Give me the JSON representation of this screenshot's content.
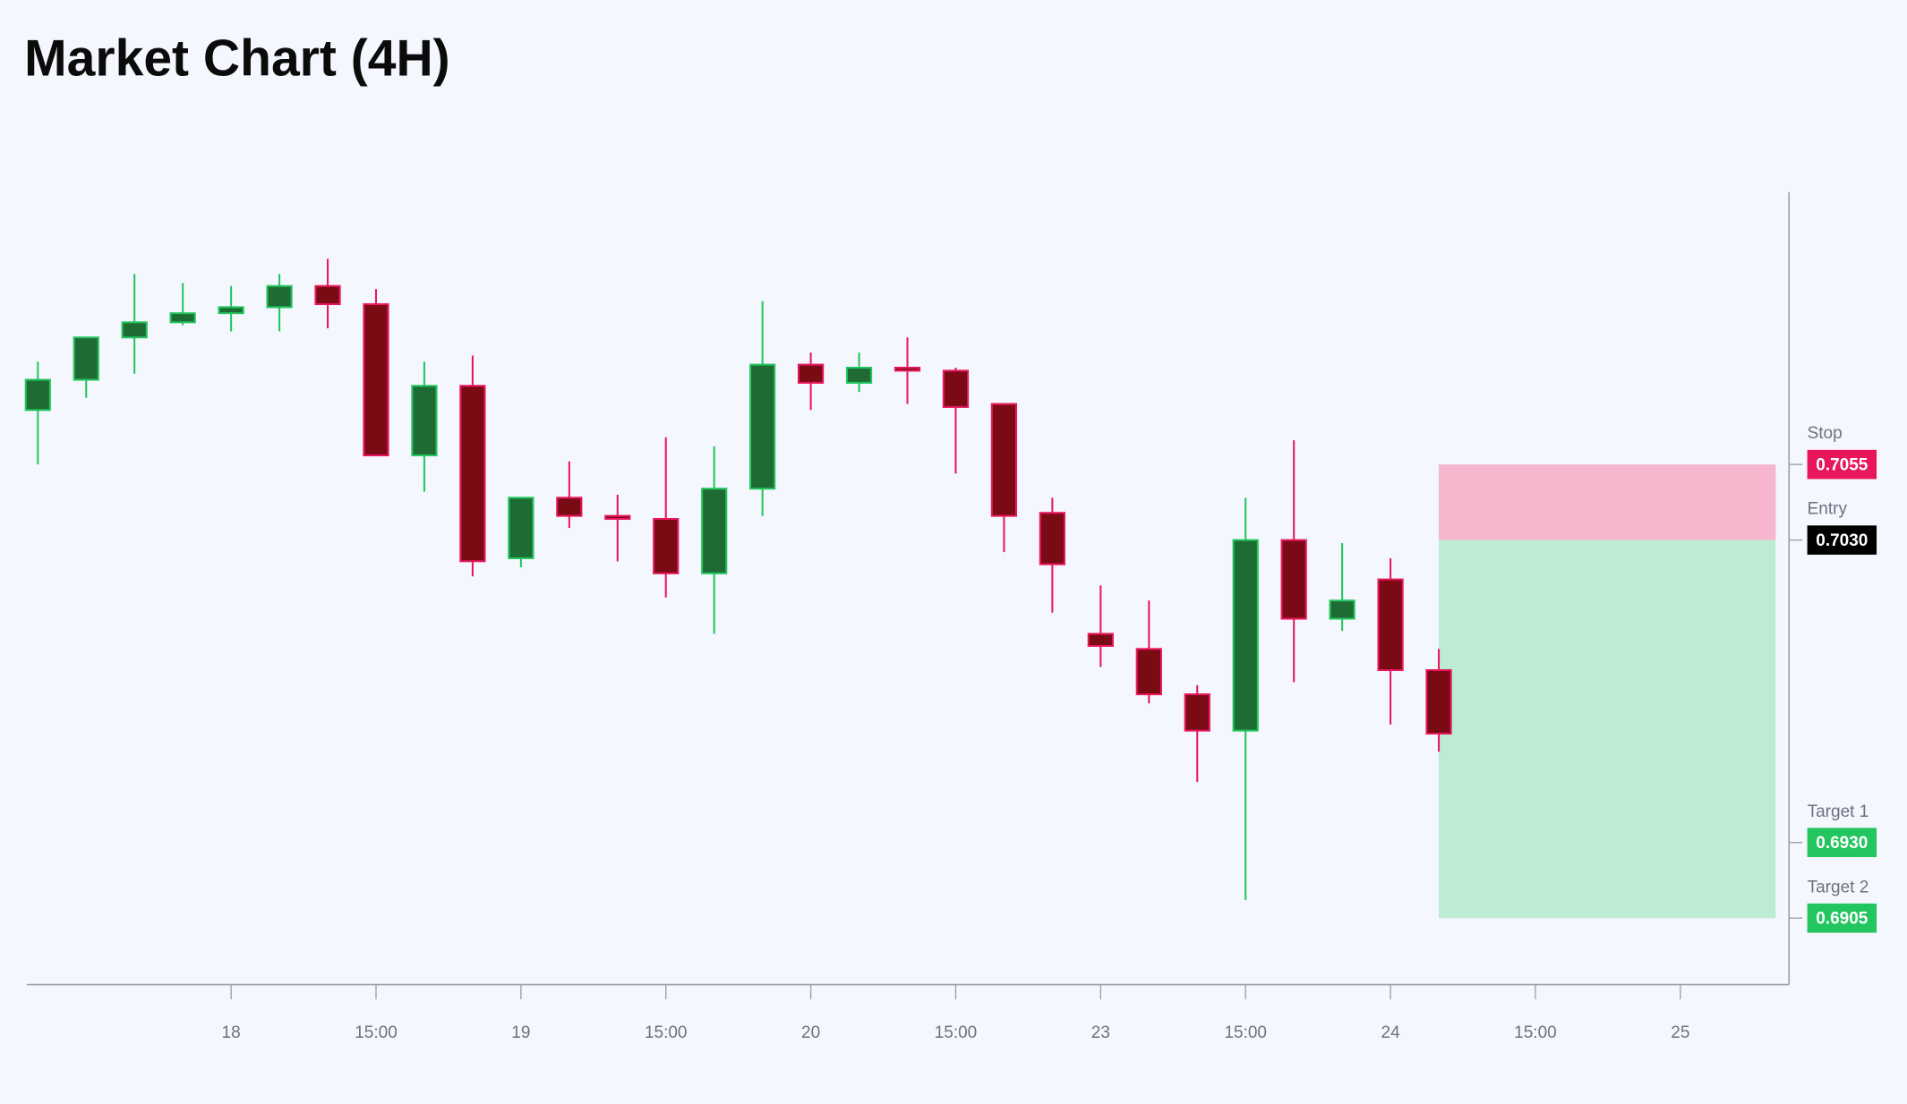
{
  "chart_data": {
    "type": "candlestick",
    "title": "Market Chart (4H)",
    "x": [
      0,
      1,
      2,
      3,
      4,
      5,
      6,
      7,
      8,
      9,
      10,
      11,
      12,
      13,
      14,
      15,
      16,
      17,
      18,
      19,
      20,
      21,
      22,
      23,
      24,
      25,
      26,
      27,
      28,
      29
    ],
    "open": [
      0.7073,
      0.7083,
      0.7097,
      0.7102,
      0.7105,
      0.7107,
      0.7114,
      0.7108,
      0.7058,
      0.7081,
      0.7024,
      0.7044,
      0.7038,
      0.7037,
      0.7019,
      0.7047,
      0.7088,
      0.7082,
      0.7087,
      0.7086,
      0.7075,
      0.7039,
      0.6999,
      0.6994,
      0.6979,
      0.6967,
      0.703,
      0.7004,
      0.7017,
      0.6987
    ],
    "high": [
      0.7089,
      0.7097,
      0.7118,
      0.7115,
      0.7114,
      0.7118,
      0.7123,
      0.7113,
      0.7089,
      0.7091,
      0.7044,
      0.7056,
      0.7045,
      0.7064,
      0.7061,
      0.7109,
      0.7092,
      0.7092,
      0.7097,
      0.7087,
      0.7075,
      0.7044,
      0.7015,
      0.701,
      0.6982,
      0.7044,
      0.7063,
      0.7029,
      0.7024,
      0.6994
    ],
    "low": [
      0.7055,
      0.7077,
      0.7085,
      0.7101,
      0.7099,
      0.7099,
      0.71,
      0.7058,
      0.7046,
      0.7018,
      0.7021,
      0.7034,
      0.7023,
      0.7011,
      0.6999,
      0.7038,
      0.7073,
      0.7079,
      0.7075,
      0.7052,
      0.7026,
      0.7006,
      0.6988,
      0.6976,
      0.695,
      0.6911,
      0.6983,
      0.7,
      0.6969,
      0.696
    ],
    "close": [
      0.7083,
      0.7097,
      0.7102,
      0.7105,
      0.7107,
      0.7114,
      0.7108,
      0.7058,
      0.7081,
      0.7023,
      0.7044,
      0.7038,
      0.7037,
      0.7019,
      0.7047,
      0.7088,
      0.7082,
      0.7087,
      0.7086,
      0.7074,
      0.7038,
      0.7022,
      0.6995,
      0.6979,
      0.6967,
      0.703,
      0.7004,
      0.701,
      0.6987,
      0.6966
    ],
    "up_color": "#22c55e",
    "up_fill": "#1f6b34",
    "down_color": "#e8175d",
    "down_fill": "#7a0a14",
    "xlim": [
      -0.23,
      36.25
    ],
    "xticks": [
      {
        "value": 4,
        "label": "18"
      },
      {
        "value": 7,
        "label": "15:00"
      },
      {
        "value": 10,
        "label": "19"
      },
      {
        "value": 13,
        "label": "15:00"
      },
      {
        "value": 16,
        "label": "20"
      },
      {
        "value": 19,
        "label": "15:00"
      },
      {
        "value": 22,
        "label": "23"
      },
      {
        "value": 25,
        "label": "15:00"
      },
      {
        "value": 28,
        "label": "24"
      },
      {
        "value": 31,
        "label": "15:00"
      },
      {
        "value": 34,
        "label": "25"
      }
    ],
    "ylim": [
      0.6883,
      0.7145
    ],
    "levels": [
      {
        "name": "Stop",
        "value": 0.7055,
        "value_label": "0.7055",
        "color": "#e8175d"
      },
      {
        "name": "Entry",
        "value": 0.703,
        "value_label": "0.7030",
        "color": "#000000"
      },
      {
        "name": "Target 1",
        "value": 0.693,
        "value_label": "0.6930",
        "color": "#22c55e"
      },
      {
        "name": "Target 2",
        "value": 0.6905,
        "value_label": "0.6905",
        "color": "#22c55e"
      }
    ],
    "risk_color": "#f4b5cd",
    "reward_color": "#bcecd2"
  }
}
